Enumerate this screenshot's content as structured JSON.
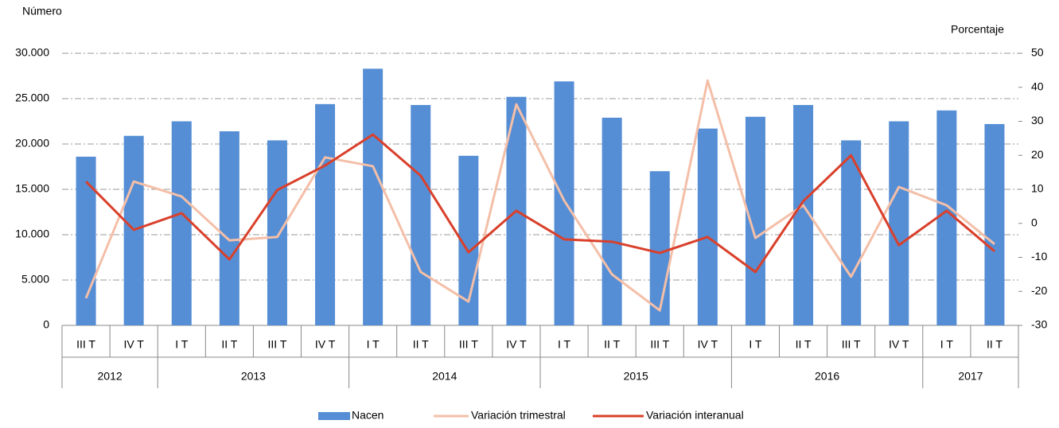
{
  "chart_data": {
    "type": "bar",
    "y_label": "Número",
    "y2_label": "Porcentaje",
    "categories": [
      "III T",
      "IV T",
      "I T",
      "II T",
      "III T",
      "IV T",
      "I T",
      "II T",
      "III T",
      "IV T",
      "I T",
      "II T",
      "III T",
      "IV T",
      "I T",
      "II T",
      "III T",
      "IV T",
      "I T",
      "II T"
    ],
    "groups": [
      {
        "label": "2012",
        "span": 2
      },
      {
        "label": "2013",
        "span": 4
      },
      {
        "label": "2014",
        "span": 4
      },
      {
        "label": "2015",
        "span": 4
      },
      {
        "label": "2016",
        "span": 4
      },
      {
        "label": "2017",
        "span": 2
      }
    ],
    "series": [
      {
        "name": "Nacen",
        "type": "bar",
        "color": "#558ed5",
        "values": [
          18600,
          20900,
          22500,
          21400,
          20400,
          24400,
          28300,
          24300,
          18700,
          25200,
          26900,
          22900,
          17000,
          21700,
          23000,
          24300,
          20400,
          22500,
          23700,
          22200
        ]
      },
      {
        "name": "Variación trimestral",
        "type": "line",
        "axis": "y2",
        "color": "#f4bfa8",
        "values": [
          -22,
          12.3,
          7.9,
          -5,
          -4,
          19.4,
          16.8,
          -14.3,
          -23,
          35,
          6.7,
          -15,
          -25.6,
          42,
          -4.3,
          5.3,
          -15.7,
          10.7,
          5.3,
          -6.1
        ]
      },
      {
        "name": "Variación interanual",
        "type": "line",
        "axis": "y2",
        "color": "#d9402b",
        "values": [
          12.3,
          -1.9,
          3,
          -10.6,
          9.8,
          17,
          26.1,
          14,
          -8.5,
          3.7,
          -4.7,
          -5.4,
          -8.7,
          -4,
          -14.3,
          6.5,
          20,
          -6.4,
          3.7,
          -8.2
        ]
      }
    ],
    "ylim": [
      0,
      30000
    ],
    "yticks": [
      0,
      {
        "value": 5000,
        "label": "5.000"
      },
      {
        "value": 10000,
        "label": "10.000"
      },
      {
        "value": 15000,
        "label": "15.000"
      },
      {
        "value": 20000,
        "label": "20.000"
      },
      {
        "value": 25000,
        "label": "25.000"
      },
      {
        "value": 30000,
        "label": "30.000"
      }
    ],
    "y2lim": [
      -30,
      50
    ],
    "y2ticks": [
      -30,
      -20,
      -10,
      0,
      10,
      20,
      30,
      40,
      50
    ],
    "grid": true,
    "legend": "bottom"
  }
}
